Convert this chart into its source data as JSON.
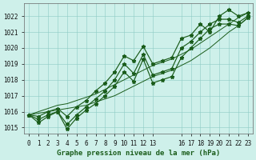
{
  "title": "Graphe pression niveau de la mer (hPa)",
  "bg_color": "#cef0ea",
  "grid_color": "#8cccc4",
  "line_color": "#1a5c1a",
  "xlim_min": -0.5,
  "xlim_max": 23.5,
  "ylim_min": 1014.6,
  "ylim_max": 1022.8,
  "yticks": [
    1015,
    1016,
    1017,
    1018,
    1019,
    1020,
    1021,
    1022
  ],
  "xtick_vals": [
    0,
    1,
    2,
    3,
    4,
    5,
    6,
    7,
    8,
    9,
    10,
    11,
    12,
    13,
    16,
    17,
    18,
    19,
    20,
    21,
    22,
    23
  ],
  "xtick_labels": [
    "0",
    "1",
    "2",
    "3",
    "4",
    "5",
    "6",
    "7",
    "8",
    "9",
    "10",
    "11",
    "12",
    "13",
    "16",
    "17",
    "18",
    "19",
    "20",
    "21",
    "22",
    "23"
  ],
  "series_upper": [
    1015.8,
    1015.7,
    1016.0,
    1016.2,
    1015.7,
    1016.3,
    1016.7,
    1017.3,
    1017.8,
    1018.5,
    1019.5,
    1019.2,
    1020.1,
    1019.0,
    1019.2,
    1019.4,
    1020.6,
    1020.8,
    1021.5,
    1021.0,
    1022.0,
    1022.4,
    1022.0,
    1022.2
  ],
  "series_mid": [
    1015.8,
    1015.5,
    1015.8,
    1016.0,
    1015.2,
    1015.8,
    1016.3,
    1016.8,
    1017.3,
    1018.0,
    1019.0,
    1018.4,
    1019.6,
    1018.3,
    1018.5,
    1018.7,
    1020.0,
    1020.4,
    1021.0,
    1021.5,
    1021.8,
    1021.8,
    1021.6,
    1022.0
  ],
  "series_lower": [
    1015.8,
    1015.3,
    1015.7,
    1016.0,
    1014.9,
    1015.6,
    1016.1,
    1016.5,
    1017.0,
    1017.6,
    1018.5,
    1017.9,
    1019.3,
    1017.8,
    1018.0,
    1018.2,
    1019.4,
    1020.0,
    1020.6,
    1021.2,
    1021.5,
    1021.5,
    1021.4,
    1021.9
  ],
  "trend_high": [
    1015.8,
    1016.0,
    1016.2,
    1016.4,
    1016.5,
    1016.7,
    1016.9,
    1017.1,
    1017.4,
    1017.7,
    1018.0,
    1018.3,
    1018.6,
    1018.9,
    1019.1,
    1019.3,
    1019.6,
    1019.9,
    1020.3,
    1020.7,
    1021.1,
    1021.5,
    1021.9,
    1022.2
  ],
  "trend_low": [
    1015.8,
    1015.9,
    1016.0,
    1016.1,
    1016.2,
    1016.3,
    1016.4,
    1016.6,
    1016.8,
    1017.0,
    1017.3,
    1017.6,
    1017.9,
    1018.2,
    1018.4,
    1018.6,
    1018.9,
    1019.2,
    1019.6,
    1020.0,
    1020.5,
    1021.0,
    1021.4,
    1021.9
  ],
  "ylabel_fontsize": 5.5,
  "xlabel_fontsize": 6.5,
  "tick_fontsize": 5.5,
  "linewidth": 0.85,
  "trend_linewidth": 0.7,
  "markersize": 3.5
}
